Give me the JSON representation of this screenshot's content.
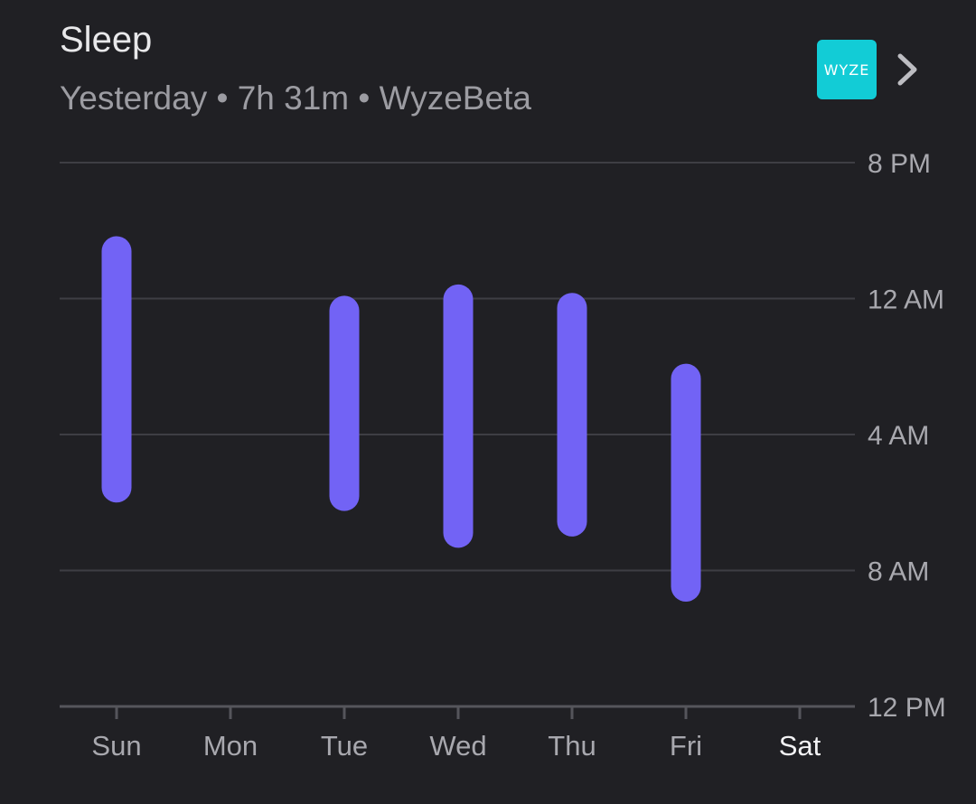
{
  "card": {
    "title": "Sleep",
    "subtitle": "Yesterday • 7h 31m • WyzeBeta",
    "app_badge_text": "WYZE",
    "badge_color": "#12ccd6"
  },
  "chart_data": {
    "type": "range-bar",
    "bar_color": "#7263f5",
    "grid": true,
    "y_ticks": [
      "8 PM",
      "12 AM",
      "4 AM",
      "8 AM",
      "12 PM"
    ],
    "y_range": [
      "8 PM",
      "12 PM"
    ],
    "categories": [
      "Sun",
      "Mon",
      "Tue",
      "Wed",
      "Thu",
      "Fri",
      "Sat"
    ],
    "selected_category": "Sat",
    "bars": [
      {
        "day": "Sun",
        "start": "10:10 PM",
        "end": "6:00 AM"
      },
      {
        "day": "Mon",
        "start": null,
        "end": null
      },
      {
        "day": "Tue",
        "start": "11:55 PM",
        "end": "6:15 AM"
      },
      {
        "day": "Wed",
        "start": "11:35 PM",
        "end": "7:20 AM"
      },
      {
        "day": "Thu",
        "start": "11:50 PM",
        "end": "7:00 AM"
      },
      {
        "day": "Fri",
        "start": "1:55 AM",
        "end": "8:55 AM"
      },
      {
        "day": "Sat",
        "start": null,
        "end": null
      }
    ]
  }
}
